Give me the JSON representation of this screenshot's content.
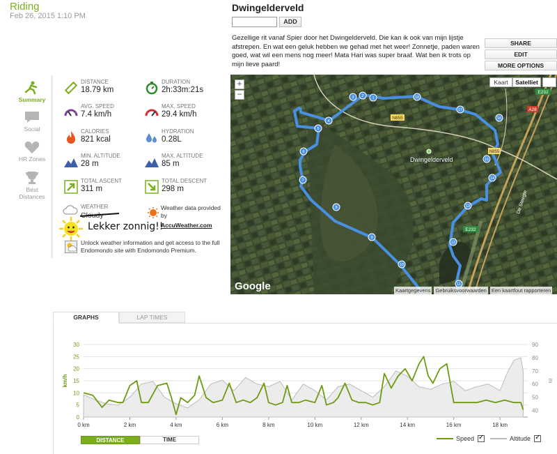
{
  "header": {
    "activity_type": "Riding",
    "date": "Feb 26, 2015 1:10 PM",
    "title": "Dwingelderveld",
    "tag_input_value": "",
    "add_label": "ADD",
    "description": "Gezellige rit vanaf Spier door het Dwingelderveld. Die kan ik ook van mijn lijstje afstrepen. En wat een geluk hebben we gehad met het weer! Zonnetje, paden waren goed, wat wil een mens nog meer! Mata Hari was super braaf. Wat ben ik trots op mijn lieve paard!",
    "actions": [
      "SHARE",
      "EDIT",
      "MORE OPTIONS"
    ]
  },
  "side_tabs": [
    {
      "label": "Summary",
      "icon": "rider-icon",
      "active": true
    },
    {
      "label": "Social",
      "icon": "speech-bubble-icon",
      "active": false
    },
    {
      "label": "HR Zones",
      "icon": "heart-icon",
      "active": false
    },
    {
      "label": "Best Distances",
      "icon": "trophy-icon",
      "active": false
    }
  ],
  "stats": {
    "distance": {
      "label": "DISTANCE",
      "value": "18.79 km"
    },
    "duration": {
      "label": "DURATION",
      "value": "2h:33m:21s"
    },
    "avg_speed": {
      "label": "AVG. SPEED",
      "value": "7.4 km/h"
    },
    "max_speed": {
      "label": "MAX. SPEED",
      "value": "29.4 km/h"
    },
    "calories": {
      "label": "CALORIES",
      "value": "821 kcal"
    },
    "hydration": {
      "label": "HYDRATION",
      "value": "0.28L"
    },
    "min_altitude": {
      "label": "MIN. ALTITUDE",
      "value": "28 m"
    },
    "max_altitude": {
      "label": "MAX. ALTITUDE",
      "value": "85 m"
    },
    "total_ascent": {
      "label": "TOTAL ASCENT",
      "value": "311 m"
    },
    "total_descent": {
      "label": "TOTAL DESCENT",
      "value": "298 m"
    }
  },
  "weather": {
    "label": "WEATHER",
    "value": "Cloudy",
    "annotation": "Lekker zonnig!!",
    "data_label": "Weather data provided by",
    "provider": "AccuWeather.com",
    "unlock_text": "Unlock weather information and get access to the full Endomondo site with Endomondo Premium."
  },
  "map": {
    "type_kaart": "Kaart",
    "type_satelliet": "Satelliet",
    "place_label": "Dwingelderveld",
    "road_labels": [
      "N855",
      "A28",
      "E232",
      "E232",
      "De Steegte",
      "N855"
    ],
    "google": "Google",
    "footer": [
      "Kaartgegevens",
      "Gebruiksvoorwaarden",
      "Een kaartfout rapporteren"
    ],
    "zoom_in": "+",
    "zoom_out": "−",
    "km_markers": [
      "1",
      "2",
      "3",
      "4",
      "5",
      "6",
      "7",
      "8",
      "9",
      "10",
      "11",
      "12",
      "13",
      "14",
      "15",
      "16",
      "17",
      "18"
    ]
  },
  "graph_tabs": {
    "graphs": "GRAPHS",
    "lap_times": "LAP TIMES"
  },
  "toggles": {
    "distance": "DISTANCE",
    "time": "TIME"
  },
  "legend": {
    "speed": "Speed",
    "altitude": "Altitude"
  },
  "colors": {
    "accent": "#7cad1e",
    "speed": "#6e9a12",
    "altitude": "#bbbbbb",
    "route": "#4a90e2"
  },
  "chart_data": {
    "type": "line",
    "x_label_unit": "km",
    "xlim": [
      0,
      19.2
    ],
    "x_ticks": [
      0,
      2,
      4,
      6,
      8,
      10,
      12,
      14,
      16,
      18
    ],
    "x_tick_labels": [
      "0 km",
      "2 km",
      "4 km",
      "6 km",
      "8 km",
      "10 km",
      "12 km",
      "14 km",
      "16 km",
      "18 km"
    ],
    "ylabel_left": "km/h",
    "ylabel_right": "m",
    "ylim_left": [
      0,
      30
    ],
    "ylim_right": [
      35,
      90
    ],
    "y_ticks_left": [
      0,
      5,
      10,
      15,
      20,
      25,
      30
    ],
    "y_ticks_right": [
      40,
      50,
      60,
      70,
      80,
      90
    ],
    "grid": true,
    "series": [
      {
        "name": "Speed",
        "axis": "left",
        "x": [
          0,
          0.4,
          0.8,
          1.1,
          1.5,
          1.7,
          2.0,
          2.3,
          2.5,
          2.8,
          3.2,
          3.6,
          3.8,
          4.0,
          4.2,
          4.5,
          4.8,
          5.0,
          5.3,
          5.6,
          6.0,
          6.3,
          6.6,
          6.9,
          7.2,
          7.5,
          7.8,
          8.0,
          8.3,
          8.6,
          8.8,
          9.0,
          9.3,
          9.6,
          10.0,
          10.3,
          10.5,
          10.8,
          11.0,
          11.3,
          11.6,
          11.9,
          12.2,
          12.5,
          12.8,
          13.0,
          13.3,
          13.6,
          13.9,
          14.2,
          14.5,
          14.7,
          14.9,
          15.1,
          15.4,
          15.7,
          16.0,
          16.3,
          16.6,
          17.0,
          17.4,
          17.8,
          18.2,
          18.6,
          18.9,
          19.0
        ],
        "values": [
          10,
          9,
          4,
          7,
          6,
          6,
          13,
          15,
          6,
          6,
          13,
          14,
          8,
          1,
          8,
          6,
          9,
          17,
          8,
          6,
          7,
          14,
          6,
          7,
          6,
          8,
          14,
          6,
          5,
          6,
          13,
          6,
          6,
          7,
          6,
          13,
          5,
          6,
          8,
          14,
          7,
          6,
          6,
          5,
          6,
          18,
          12,
          17,
          20,
          15,
          22,
          25,
          17,
          14,
          20,
          22,
          6,
          6,
          6,
          6,
          7,
          6,
          7,
          6,
          6,
          3
        ]
      },
      {
        "name": "Altitude",
        "axis": "right",
        "x": [
          0,
          0.5,
          1.0,
          1.5,
          2.0,
          2.5,
          3.0,
          3.5,
          4.0,
          4.5,
          5.0,
          5.5,
          6.0,
          6.5,
          7.0,
          7.5,
          8.0,
          8.5,
          9.0,
          9.5,
          10.0,
          10.5,
          11.0,
          11.5,
          12.0,
          12.5,
          13.0,
          13.5,
          14.0,
          14.5,
          15.0,
          15.5,
          16.0,
          16.5,
          17.0,
          17.5,
          18.0,
          18.3,
          18.6,
          18.9,
          19.0
        ],
        "values": [
          52,
          48,
          45,
          44,
          50,
          60,
          62,
          50,
          45,
          42,
          48,
          60,
          63,
          55,
          65,
          60,
          58,
          62,
          48,
          60,
          55,
          48,
          58,
          60,
          55,
          50,
          58,
          70,
          66,
          58,
          56,
          60,
          62,
          55,
          58,
          60,
          55,
          68,
          78,
          80,
          70
        ]
      }
    ]
  }
}
